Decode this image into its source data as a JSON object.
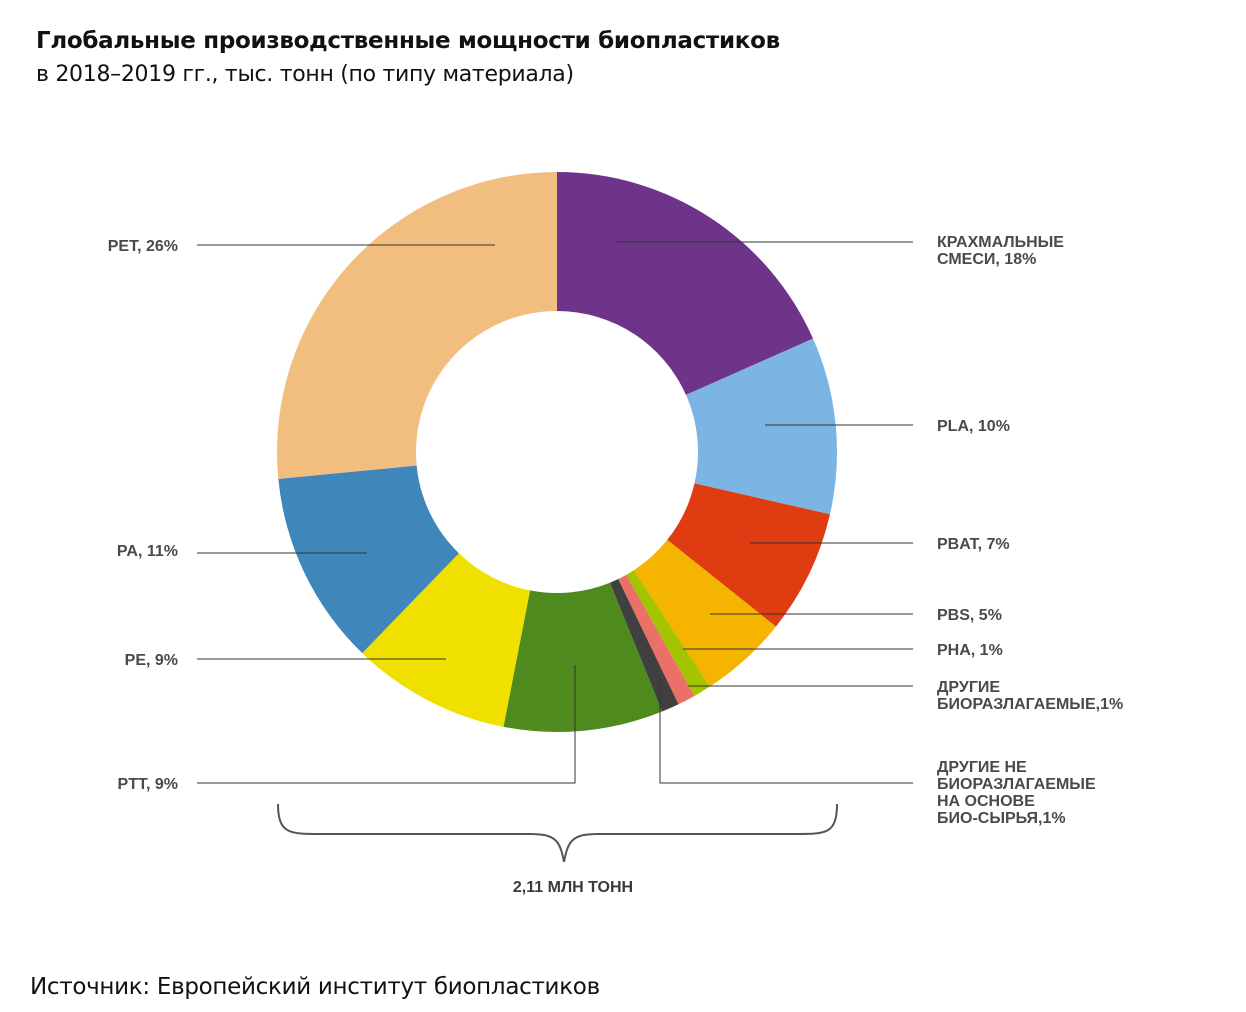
{
  "title": "Глобальные производственные мощности биопластиков",
  "subtitle": "в 2018–2019 гг., тыс. тонн (по типу материала)",
  "source": "Источник: Европейский институт биопластиков",
  "chart_data": {
    "type": "pie",
    "donut": true,
    "total_label": "2,11 МЛН ТОНН",
    "slices": [
      {
        "label": [
          "КРАХМАЛЬНЫЕ",
          "СМЕСИ, 18%"
        ],
        "value": 18,
        "color": "#6e348a"
      },
      {
        "label": [
          "PLA, 10%"
        ],
        "value": 10,
        "color": "#7cb4e3"
      },
      {
        "label": [
          "PBAT, 7%"
        ],
        "value": 7,
        "color": "#df3c12"
      },
      {
        "label": [
          "PBS, 5%"
        ],
        "value": 5,
        "color": "#f4b400"
      },
      {
        "label": [
          "PHA, 1%"
        ],
        "value": 1,
        "color": "#a5c400"
      },
      {
        "label": [
          "ДРУГИЕ",
          "БИОРАЗЛАГАЕМЫЕ,1%"
        ],
        "value": 1,
        "color": "#ea7068"
      },
      {
        "label": [
          "ДРУГИЕ НЕ",
          "БИОРАЗЛАГАЕМЫЕ",
          "НА ОСНОВЕ",
          "БИО-СЫРЬЯ,1%"
        ],
        "value": 1,
        "color": "#404040"
      },
      {
        "label": [
          "PTT, 9%"
        ],
        "value": 9,
        "color": "#4f8a1f"
      },
      {
        "label": [
          "PE, 9%"
        ],
        "value": 9,
        "color": "#f0e000"
      },
      {
        "label": [
          "PA, 11%"
        ],
        "value": 11,
        "color": "#3f86bb"
      },
      {
        "label": [
          "PET, 26%"
        ],
        "value": 26,
        "color": "#f2be7f"
      }
    ]
  }
}
